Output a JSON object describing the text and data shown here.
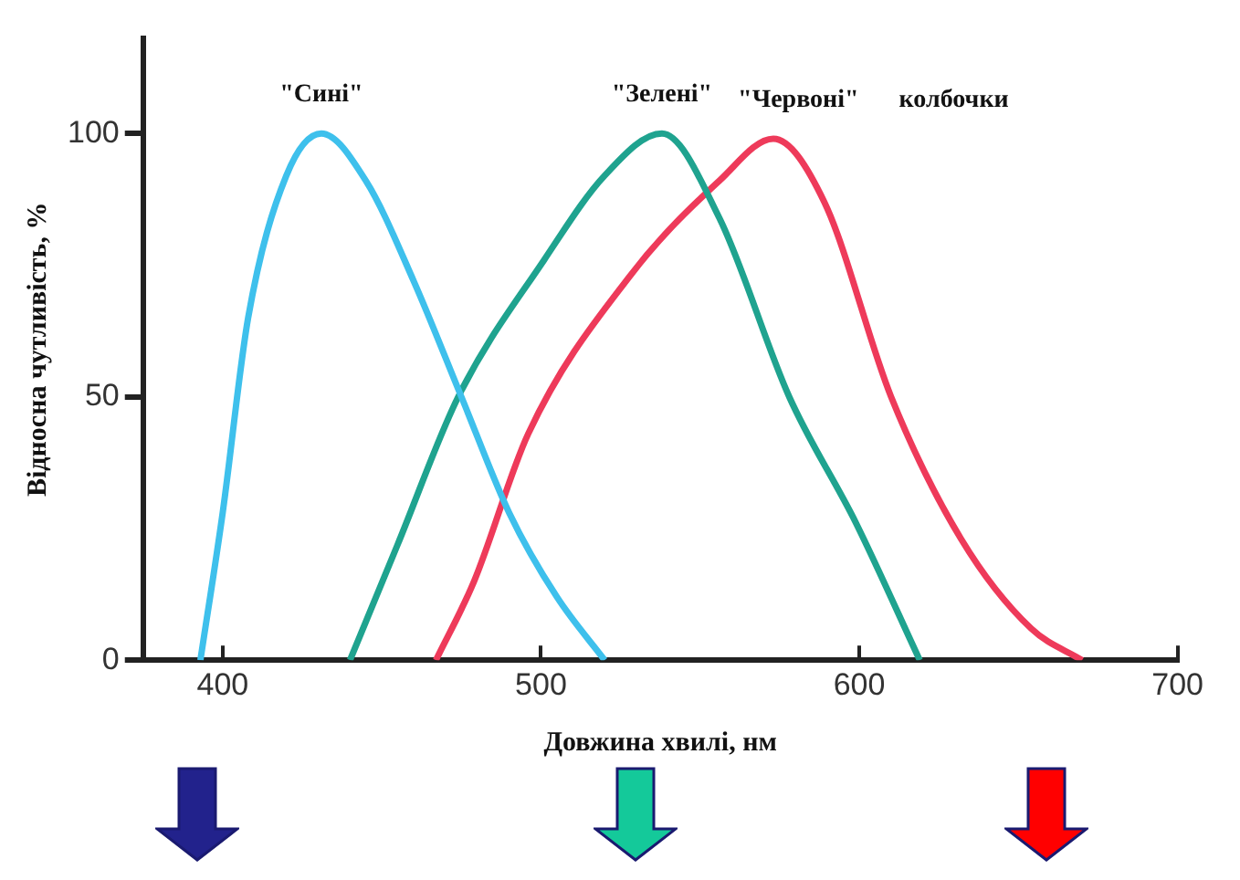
{
  "chart_data": {
    "type": "line",
    "xlabel": "Довжина хвилі, нм",
    "ylabel": "Відносна чутливість, %",
    "xlim": [
      375,
      700
    ],
    "xticks": [
      400,
      500,
      600,
      700
    ],
    "ylim": [
      0,
      118
    ],
    "yticks": [
      0,
      50,
      100
    ],
    "grid": false,
    "legend": false,
    "marker": "none",
    "line_style": "solid",
    "annotations": [
      "колбочки"
    ],
    "series": [
      {
        "name": "\"Сині\"",
        "color": "#3ec0ec",
        "x": [
          393,
          400,
          408,
          420,
          431,
          445,
          460,
          475,
          490,
          505,
          520
        ],
        "values": [
          0,
          28,
          65,
          92,
          100,
          91,
          72,
          50,
          28,
          12,
          0
        ]
      },
      {
        "name": "\"Зелені\"",
        "color": "#1fa38f",
        "x": [
          440,
          455,
          474,
          501,
          520,
          538,
          556,
          578,
          599,
          619
        ],
        "values": [
          0,
          22,
          50,
          76,
          92,
          100,
          84,
          50,
          26,
          0
        ]
      },
      {
        "name": "\"Червоні\"",
        "color": "#ee3a5a",
        "x": [
          467,
          479,
          496,
          528,
          556,
          573,
          589,
          610,
          632,
          654,
          670
        ],
        "values": [
          0,
          15,
          43,
          73,
          91,
          99,
          87,
          50,
          23,
          6,
          0
        ]
      }
    ]
  }
}
